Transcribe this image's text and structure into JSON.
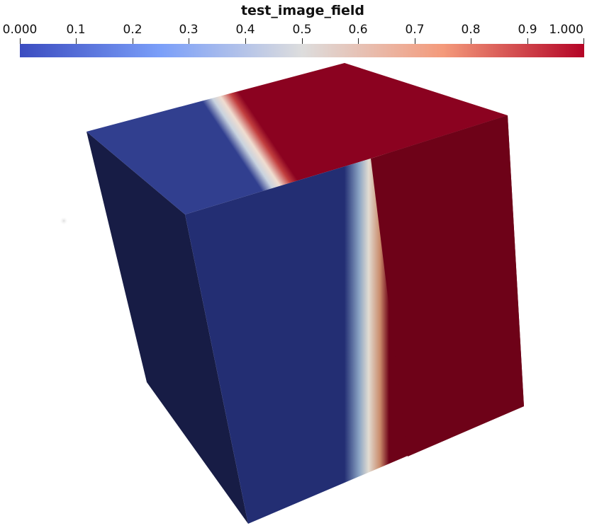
{
  "colorbar": {
    "title": "test_image_field",
    "tick_labels": [
      "0.000",
      "0.1",
      "0.2",
      "0.3",
      "0.4",
      "0.5",
      "0.6",
      "0.7",
      "0.8",
      "0.9",
      "1.000"
    ],
    "range": [
      0.0,
      1.0
    ],
    "colormap_stops": [
      {
        "value": 0.0,
        "color": "#3b4cc0"
      },
      {
        "value": 0.25,
        "color": "#7b9ff9"
      },
      {
        "value": 0.5,
        "color": "#dddddd"
      },
      {
        "value": 0.75,
        "color": "#f49a7b"
      },
      {
        "value": 1.0,
        "color": "#b40426"
      }
    ]
  },
  "scene": {
    "background": "#ffffff",
    "face_colors": {
      "top_low": "#313f8f",
      "top_high": "#8b0220",
      "front_low": "#232e73",
      "front_high": "#6e0218",
      "side_dark": "#171c45"
    }
  }
}
